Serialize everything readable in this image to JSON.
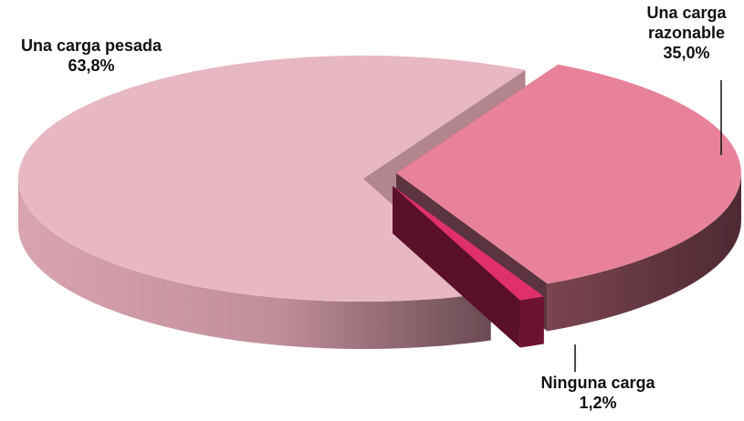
{
  "chart_data": {
    "type": "pie",
    "three_d": true,
    "exploded": true,
    "title": "",
    "slices": [
      {
        "label": "Una carga pesada",
        "value": 63.8,
        "value_label": "63,8%",
        "color": "#e8b8c2"
      },
      {
        "label": "Una carga razonable",
        "value": 35.0,
        "value_label": "35,0%",
        "color": "#e8829a"
      },
      {
        "label": "Ninguna carga",
        "value": 1.2,
        "value_label": "1,2%",
        "color": "#e0306a"
      }
    ],
    "labels": [
      {
        "lines": [
          "Una carga pesada",
          "63,8%"
        ]
      },
      {
        "lines": [
          "Una carga",
          "razonable",
          "35,0%"
        ]
      },
      {
        "lines": [
          "Ninguna carga",
          "1,2%"
        ]
      }
    ]
  }
}
